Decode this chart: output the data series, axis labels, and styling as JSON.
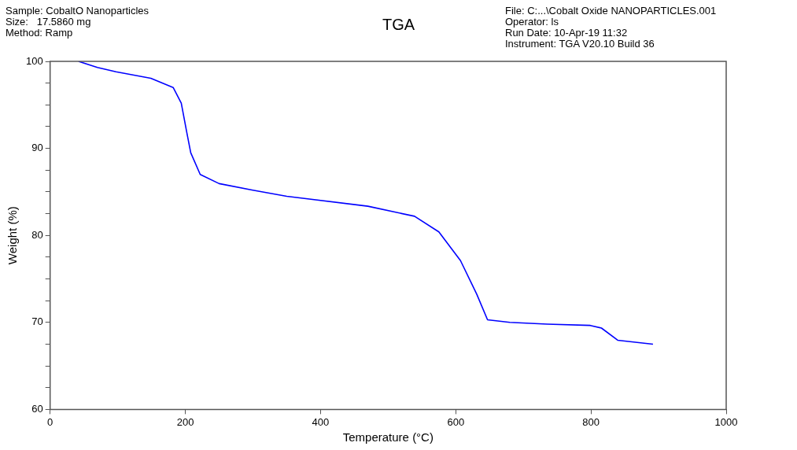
{
  "chart_data": {
    "type": "line",
    "title": "TGA",
    "xlabel": "Temperature (°C)",
    "ylabel": "Weight (%)",
    "annotations": [
      "Sample: CobaltO Nanoparticles\nSize:   17.5860 mg\nMethod: Ramp",
      "File: C:...\\Cobalt Oxide NANOPARTICLES.001\nOperator: ls\nRun Date: 10-Apr-19 11:32\nInstrument: TGA V20.10 Build 36"
    ],
    "xlim": [
      0,
      1000
    ],
    "xticks": [
      0,
      200,
      400,
      600,
      800,
      1000
    ],
    "ylim": [
      60,
      100
    ],
    "yticks": [
      60,
      {
        "value": 62.5,
        "label": null
      },
      {
        "value": 65,
        "label": null
      },
      {
        "value": 67.5,
        "label": null
      },
      70,
      {
        "value": 72.5,
        "label": null
      },
      {
        "value": 75,
        "label": null
      },
      {
        "value": 77.5,
        "label": null
      },
      80,
      {
        "value": 82.5,
        "label": null
      },
      {
        "value": 85,
        "label": null
      },
      {
        "value": 87.5,
        "label": null
      },
      90,
      {
        "value": 92.5,
        "label": null
      },
      {
        "value": 95,
        "label": null
      },
      {
        "value": 97.5,
        "label": null
      },
      100
    ],
    "grid": false,
    "legend": false,
    "marker": "none",
    "line_style": "solid",
    "series": [
      {
        "color": "#0000ff",
        "x": [
          42,
          70,
          97.5,
          149,
          182,
          194,
          202,
          208,
          222,
          250,
          300,
          350,
          470,
          539,
          575,
          607,
          631,
          647,
          680,
          735,
          799,
          815.5,
          839.5,
          891.7
        ],
        "values": [
          100,
          99.3,
          98.8,
          98.05,
          97.0,
          95.2,
          91.9,
          89.5,
          87.0,
          85.95,
          85.2,
          84.5,
          83.35,
          82.2,
          80.4,
          77.1,
          73.25,
          70.3,
          70.0,
          69.8,
          69.65,
          69.35,
          67.95,
          67.5
        ]
      }
    ]
  }
}
